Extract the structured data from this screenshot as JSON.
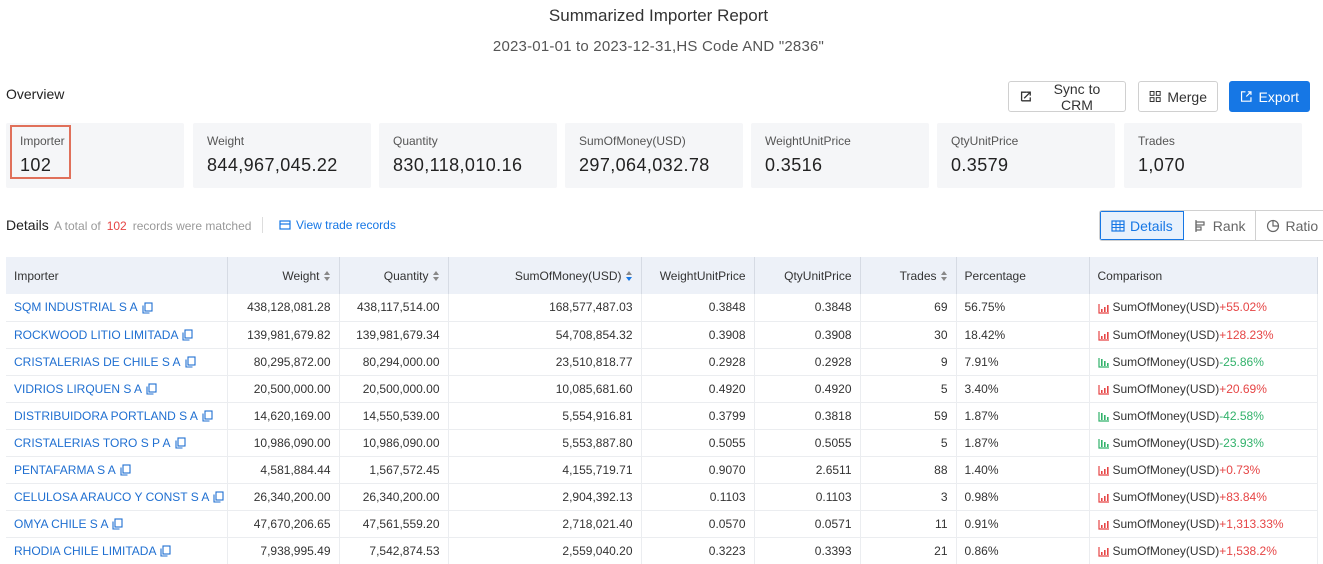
{
  "header": {
    "title": "Summarized Importer Report",
    "subtitle": "2023-01-01 to 2023-12-31,HS Code AND \"2836\""
  },
  "overview": {
    "label": "Overview",
    "buttons": {
      "sync": "Sync to CRM",
      "merge": "Merge",
      "export": "Export"
    },
    "stats": [
      {
        "label": "Importer",
        "value": "102"
      },
      {
        "label": "Weight",
        "value": "844,967,045.22"
      },
      {
        "label": "Quantity",
        "value": "830,118,010.16"
      },
      {
        "label": "SumOfMoney(USD)",
        "value": "297,064,032.78"
      },
      {
        "label": "WeightUnitPrice",
        "value": "0.3516"
      },
      {
        "label": "QtyUnitPrice",
        "value": "0.3579"
      },
      {
        "label": "Trades",
        "value": "1,070"
      }
    ]
  },
  "details": {
    "label": "Details",
    "prefix": "A total of",
    "count": "102",
    "suffix": "records were matched",
    "view_link": "View trade records",
    "tabs": [
      "Details",
      "Rank",
      "Ratio"
    ]
  },
  "table": {
    "columns": [
      "Importer",
      "Weight",
      "Quantity",
      "SumOfMoney(USD)",
      "WeightUnitPrice",
      "QtyUnitPrice",
      "Trades",
      "Percentage",
      "Comparison"
    ],
    "rows": [
      {
        "importer": "SQM INDUSTRIAL S A",
        "weight": "438,128,081.28",
        "quantity": "438,117,514.00",
        "money": "168,577,487.03",
        "wup": "0.3848",
        "qup": "0.3848",
        "trades": "69",
        "pct": "56.75%",
        "cmp_label": "SumOfMoney(USD)",
        "cmp_val": "+55.02%",
        "dir": "up"
      },
      {
        "importer": "ROCKWOOD LITIO LIMITADA",
        "weight": "139,981,679.82",
        "quantity": "139,981,679.34",
        "money": "54,708,854.32",
        "wup": "0.3908",
        "qup": "0.3908",
        "trades": "30",
        "pct": "18.42%",
        "cmp_label": "SumOfMoney(USD)",
        "cmp_val": "+128.23%",
        "dir": "up"
      },
      {
        "importer": "CRISTALERIAS DE CHILE S A",
        "weight": "80,295,872.00",
        "quantity": "80,294,000.00",
        "money": "23,510,818.77",
        "wup": "0.2928",
        "qup": "0.2928",
        "trades": "9",
        "pct": "7.91%",
        "cmp_label": "SumOfMoney(USD)",
        "cmp_val": "-25.86%",
        "dir": "down"
      },
      {
        "importer": "VIDRIOS LIRQUEN S A",
        "weight": "20,500,000.00",
        "quantity": "20,500,000.00",
        "money": "10,085,681.60",
        "wup": "0.4920",
        "qup": "0.4920",
        "trades": "5",
        "pct": "3.40%",
        "cmp_label": "SumOfMoney(USD)",
        "cmp_val": "+20.69%",
        "dir": "up"
      },
      {
        "importer": "DISTRIBUIDORA PORTLAND S A",
        "weight": "14,620,169.00",
        "quantity": "14,550,539.00",
        "money": "5,554,916.81",
        "wup": "0.3799",
        "qup": "0.3818",
        "trades": "59",
        "pct": "1.87%",
        "cmp_label": "SumOfMoney(USD)",
        "cmp_val": "-42.58%",
        "dir": "down"
      },
      {
        "importer": "CRISTALERIAS TORO S P A",
        "weight": "10,986,090.00",
        "quantity": "10,986,090.00",
        "money": "5,553,887.80",
        "wup": "0.5055",
        "qup": "0.5055",
        "trades": "5",
        "pct": "1.87%",
        "cmp_label": "SumOfMoney(USD)",
        "cmp_val": "-23.93%",
        "dir": "down"
      },
      {
        "importer": "PENTAFARMA S A",
        "weight": "4,581,884.44",
        "quantity": "1,567,572.45",
        "money": "4,155,719.71",
        "wup": "0.9070",
        "qup": "2.6511",
        "trades": "88",
        "pct": "1.40%",
        "cmp_label": "SumOfMoney(USD)",
        "cmp_val": "+0.73%",
        "dir": "up"
      },
      {
        "importer": "CELULOSA ARAUCO Y CONST S A",
        "weight": "26,340,200.00",
        "quantity": "26,340,200.00",
        "money": "2,904,392.13",
        "wup": "0.1103",
        "qup": "0.1103",
        "trades": "3",
        "pct": "0.98%",
        "cmp_label": "SumOfMoney(USD)",
        "cmp_val": "+83.84%",
        "dir": "up"
      },
      {
        "importer": "OMYA CHILE S A",
        "weight": "47,670,206.65",
        "quantity": "47,561,559.20",
        "money": "2,718,021.40",
        "wup": "0.0570",
        "qup": "0.0571",
        "trades": "11",
        "pct": "0.91%",
        "cmp_label": "SumOfMoney(USD)",
        "cmp_val": "+1,313.33%",
        "dir": "up"
      },
      {
        "importer": "RHODIA CHILE LIMITADA",
        "weight": "7,938,995.49",
        "quantity": "7,542,874.53",
        "money": "2,559,040.20",
        "wup": "0.3223",
        "qup": "0.3393",
        "trades": "21",
        "pct": "0.86%",
        "cmp_label": "SumOfMoney(USD)",
        "cmp_val": "+1,538.2%",
        "dir": "up"
      }
    ]
  },
  "colors": {
    "accent": "#1677e5",
    "up": "#e64545",
    "down": "#32b26b",
    "highlight_box": "#e0705a"
  },
  "icons": {
    "sync": "sync-icon",
    "merge": "merge-icon",
    "export": "export-icon",
    "view": "records-icon",
    "copy": "copy-icon",
    "trend_up": "trend-up-icon",
    "trend_down": "trend-down-icon"
  }
}
